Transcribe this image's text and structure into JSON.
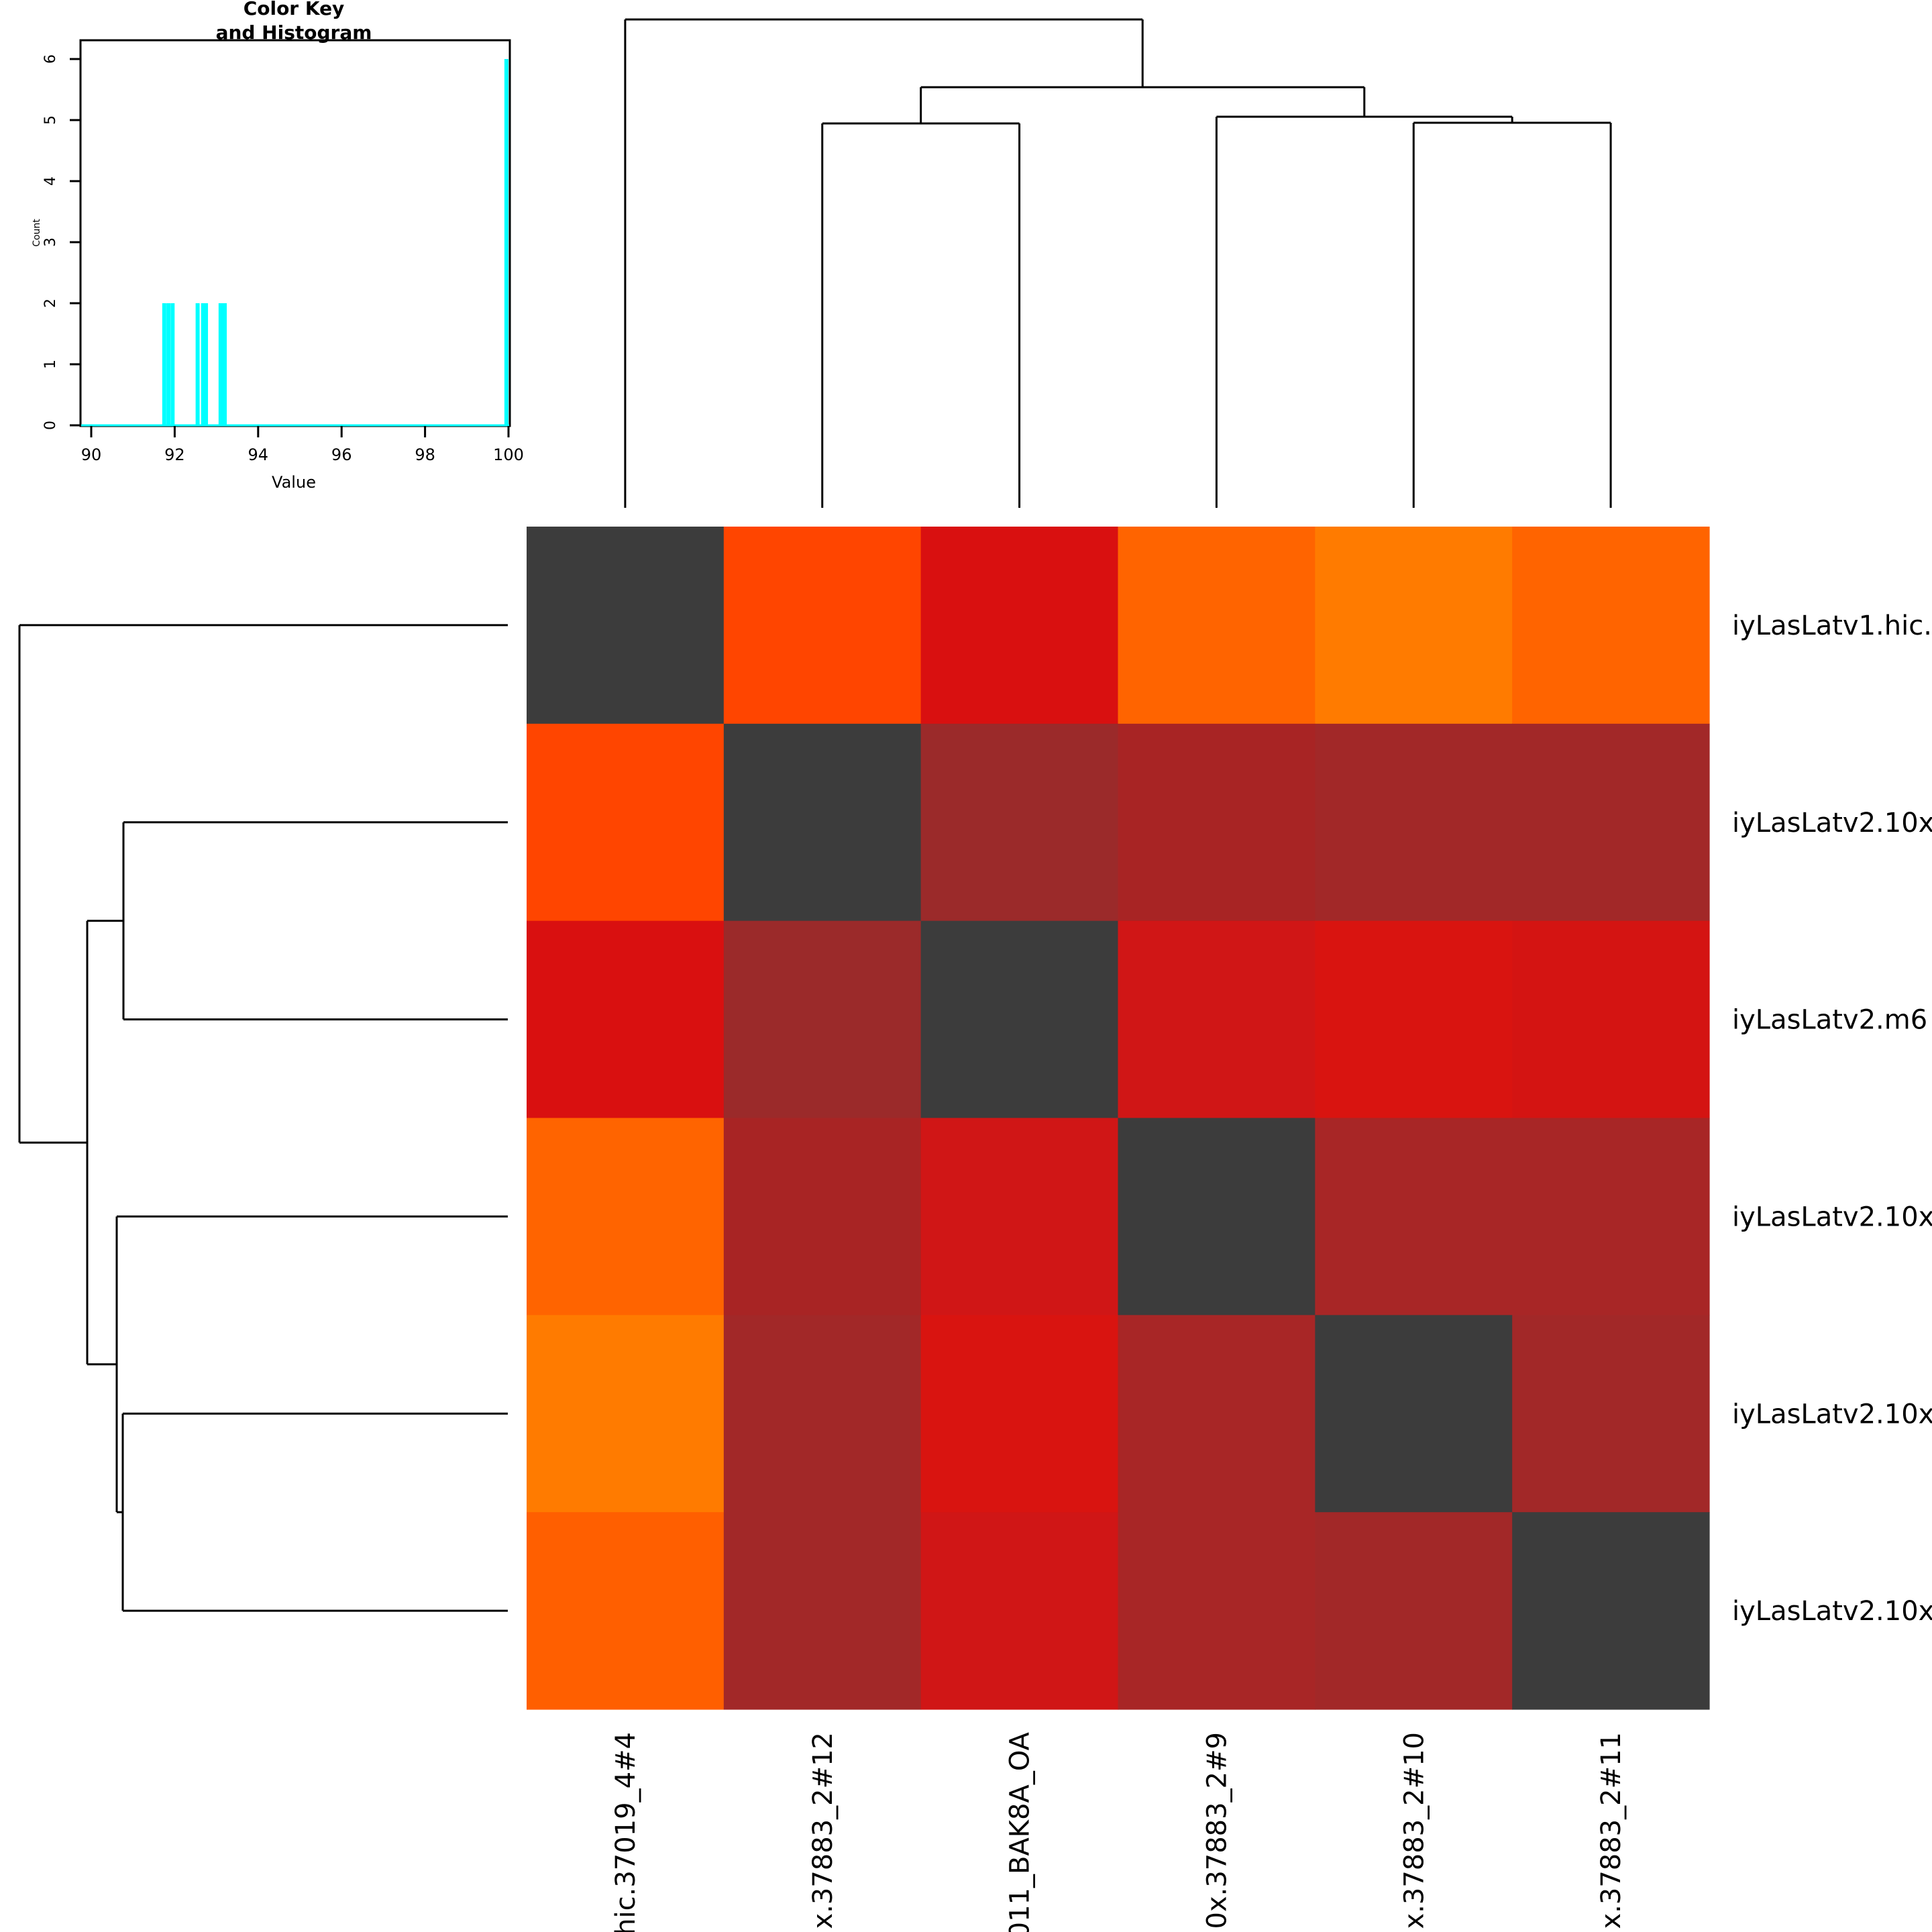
{
  "chart_data": [
    {
      "type": "heatmap",
      "title": "",
      "row_labels": [
        "iyLasLatv1.hic.",
        "iyLasLatv2.10x",
        "iyLasLatv2.m6",
        "iyLasLatv2.10x",
        "iyLasLatv2.10x",
        "iyLasLatv2.10x"
      ],
      "col_labels": [
        "hic.37019_4#4",
        "x.37883_2#12",
        "011_BAK8A_OA",
        "0x.37883_2#9",
        "x.37883_2#10",
        "x.37883_2#11"
      ],
      "values": [
        [
          100,
          92.6,
          91.8,
          93.1,
          93.2,
          93.1
        ],
        [
          92.6,
          100,
          91.8,
          92.7,
          92.6,
          92.6
        ],
        [
          91.8,
          91.8,
          100,
          91.9,
          91.8,
          91.9
        ],
        [
          93.1,
          92.7,
          91.9,
          100,
          92.7,
          92.7
        ],
        [
          93.2,
          92.6,
          91.8,
          92.7,
          100,
          92.6
        ],
        [
          93.1,
          92.6,
          91.9,
          92.7,
          92.6,
          100
        ]
      ],
      "cell_colors": [
        [
          "#3c3c3c",
          "#ff4500",
          "#d91010",
          "#ff6400",
          "#ff7b00",
          "#ff6400"
        ],
        [
          "#ff4500",
          "#3c3c3c",
          "#9b2a2a",
          "#a82424",
          "#a22828",
          "#a22828"
        ],
        [
          "#d91010",
          "#9b2a2a",
          "#3c3c3c",
          "#d01616",
          "#d91410",
          "#d41412"
        ],
        [
          "#ff6400",
          "#a82424",
          "#d01616",
          "#3c3c3c",
          "#a82626",
          "#a82626"
        ],
        [
          "#ff7b00",
          "#a22828",
          "#d91410",
          "#a82626",
          "#3c3c3c",
          "#a22828"
        ],
        [
          "#ff5f00",
          "#a22828",
          "#d01616",
          "#a82626",
          "#a22828",
          "#3c3c3c"
        ]
      ],
      "column_dendrogram": {
        "order": [
          1,
          2,
          3,
          4,
          5,
          6
        ],
        "merges": [
          {
            "left": "leaf2",
            "right": "leaf3",
            "height": 0.74
          },
          {
            "left": "leaf5",
            "right": "leaf6",
            "height": 0.74
          },
          {
            "left": "leaf4",
            "right": "node56",
            "height": 0.75
          },
          {
            "left": "node23",
            "right": "node456",
            "height": 0.86
          },
          {
            "left": "leaf1",
            "right": "node23456",
            "height": 1.0
          }
        ]
      },
      "row_dendrogram": {
        "order": [
          1,
          2,
          3,
          4,
          5,
          6
        ],
        "merges": [
          {
            "left": "leaf2",
            "right": "leaf3",
            "height": 0.74
          },
          {
            "left": "leaf5",
            "right": "leaf6",
            "height": 0.74
          },
          {
            "left": "leaf4",
            "right": "node56",
            "height": 0.75
          },
          {
            "left": "node23",
            "right": "node456",
            "height": 0.86
          },
          {
            "left": "leaf1",
            "right": "node23456",
            "height": 1.0
          }
        ]
      }
    },
    {
      "type": "bar",
      "title": "Color Key\nand Histogram",
      "title_lines": [
        "Color Key",
        "and Histogram"
      ],
      "xlabel": "Value",
      "ylabel": "Count",
      "xlim": [
        89.8,
        100
      ],
      "ylim": [
        0,
        6.3
      ],
      "x_ticks": [
        90,
        92,
        94,
        96,
        98,
        100
      ],
      "y_ticks": [
        0,
        1,
        2,
        3,
        4,
        5,
        6
      ],
      "bars": [
        {
          "x": 91.75,
          "count": 2
        },
        {
          "x": 91.85,
          "count": 2
        },
        {
          "x": 91.95,
          "count": 2
        },
        {
          "x": 92.55,
          "count": 2
        },
        {
          "x": 92.68,
          "count": 2
        },
        {
          "x": 92.75,
          "count": 2
        },
        {
          "x": 93.1,
          "count": 2
        },
        {
          "x": 93.15,
          "count": 2
        },
        {
          "x": 93.2,
          "count": 2
        },
        {
          "x": 99.95,
          "count": 6
        }
      ],
      "bar_color": "#00ffff",
      "baseline_color": "#00ffff"
    }
  ]
}
